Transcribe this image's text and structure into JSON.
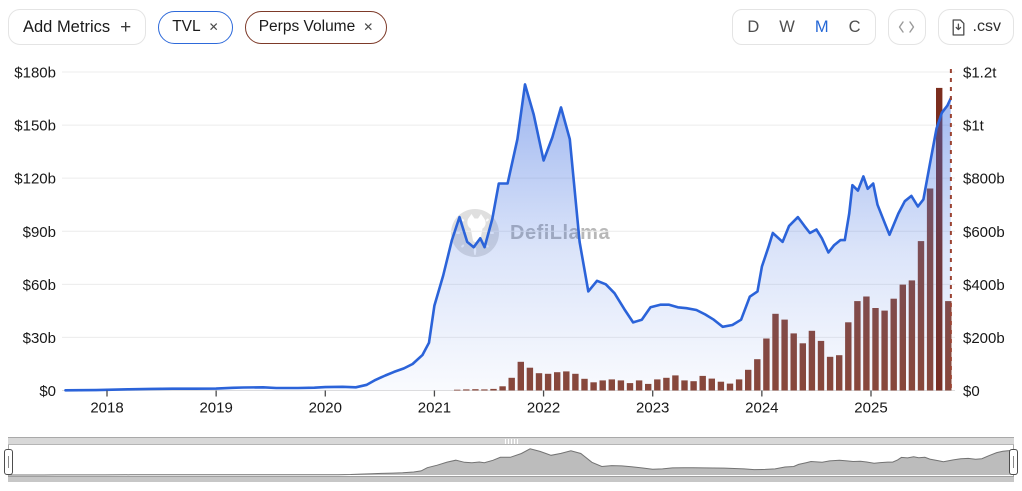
{
  "header": {
    "add_metrics": {
      "label": "Add Metrics",
      "plus_icon": "+"
    },
    "selected_metrics": [
      {
        "label": "TVL",
        "remove_icon": "✕",
        "accent": "#2e6ada"
      },
      {
        "label": "Perps Volume",
        "remove_icon": "✕",
        "accent": "#7d3a29"
      }
    ],
    "intervals": {
      "options": [
        "D",
        "W",
        "M",
        "C"
      ],
      "selected": "M",
      "selected_color": "#2467d6"
    },
    "embed_icon": "code-brackets-icon",
    "csv_button": {
      "label": ".csv",
      "icon": "file-download-icon"
    }
  },
  "watermark": {
    "text": "DefiLlama",
    "icon": "llama-logo-icon"
  },
  "colors": {
    "tvl_line": "#2b63d9",
    "tvl_fill": "#3b6ce0",
    "bars": "#8a4636",
    "bars_highlight": "#7b2d1d",
    "end_marker": "#9a4332",
    "grid": "#ececec"
  },
  "chart_data": {
    "type": "mixed",
    "title": "",
    "x_axis": {
      "ticks": [
        "2018",
        "2019",
        "2020",
        "2021",
        "2022",
        "2023",
        "2024",
        "2025"
      ]
    },
    "left_axis": {
      "title": "TVL (USD)",
      "labels": [
        "$0",
        "$30b",
        "$60b",
        "$90b",
        "$120b",
        "$150b",
        "$180b"
      ],
      "values": [
        0,
        30,
        60,
        90,
        120,
        150,
        180
      ],
      "max": 180
    },
    "right_axis": {
      "title": "Perps Volume (USD)",
      "labels": [
        "$0",
        "$200b",
        "$400b",
        "$600b",
        "$800b",
        "$1t",
        "$1.2t"
      ],
      "values": [
        0,
        200,
        400,
        600,
        800,
        1000,
        1200
      ],
      "max": 1200
    },
    "end_marker": {
      "year": 2025.732,
      "color": "#9a4332"
    },
    "series": [
      {
        "name": "TVL",
        "type": "area-line",
        "axis": "left",
        "color": "#2b63d9",
        "points": [
          [
            2017.62,
            0.1
          ],
          [
            2017.75,
            0.15
          ],
          [
            2017.9,
            0.25
          ],
          [
            2018.0,
            0.4
          ],
          [
            2018.2,
            0.7
          ],
          [
            2018.4,
            0.9
          ],
          [
            2018.6,
            1.0
          ],
          [
            2018.8,
            1.0
          ],
          [
            2019.0,
            1.1
          ],
          [
            2019.15,
            1.5
          ],
          [
            2019.25,
            1.7
          ],
          [
            2019.43,
            1.8
          ],
          [
            2019.55,
            1.4
          ],
          [
            2019.75,
            1.4
          ],
          [
            2019.9,
            1.6
          ],
          [
            2020.0,
            1.9
          ],
          [
            2020.16,
            2.1
          ],
          [
            2020.28,
            1.8
          ],
          [
            2020.38,
            3.2
          ],
          [
            2020.46,
            6
          ],
          [
            2020.55,
            8.5
          ],
          [
            2020.63,
            10.5
          ],
          [
            2020.72,
            12.5
          ],
          [
            2020.8,
            15
          ],
          [
            2020.89,
            20
          ],
          [
            2020.95,
            27
          ],
          [
            2021.0,
            48
          ],
          [
            2021.08,
            65
          ],
          [
            2021.16,
            85
          ],
          [
            2021.23,
            98
          ],
          [
            2021.3,
            84
          ],
          [
            2021.36,
            81
          ],
          [
            2021.42,
            86
          ],
          [
            2021.46,
            81
          ],
          [
            2021.53,
            97
          ],
          [
            2021.59,
            117
          ],
          [
            2021.67,
            117
          ],
          [
            2021.76,
            142
          ],
          [
            2021.83,
            173
          ],
          [
            2021.91,
            156
          ],
          [
            2022.0,
            130
          ],
          [
            2022.08,
            143
          ],
          [
            2022.16,
            160
          ],
          [
            2022.24,
            142
          ],
          [
            2022.33,
            84
          ],
          [
            2022.41,
            56
          ],
          [
            2022.49,
            62
          ],
          [
            2022.57,
            60
          ],
          [
            2022.65,
            55
          ],
          [
            2022.74,
            46
          ],
          [
            2022.82,
            38.5
          ],
          [
            2022.9,
            40
          ],
          [
            2022.98,
            47
          ],
          [
            2023.07,
            48.5
          ],
          [
            2023.15,
            48.5
          ],
          [
            2023.23,
            47
          ],
          [
            2023.31,
            46.5
          ],
          [
            2023.4,
            45.5
          ],
          [
            2023.48,
            43
          ],
          [
            2023.56,
            40
          ],
          [
            2023.64,
            36
          ],
          [
            2023.73,
            37
          ],
          [
            2023.81,
            40
          ],
          [
            2023.89,
            53
          ],
          [
            2023.96,
            56
          ],
          [
            2024.0,
            70
          ],
          [
            2024.06,
            81
          ],
          [
            2024.1,
            89
          ],
          [
            2024.19,
            84
          ],
          [
            2024.25,
            93
          ],
          [
            2024.33,
            98
          ],
          [
            2024.39,
            93
          ],
          [
            2024.44,
            89
          ],
          [
            2024.5,
            91
          ],
          [
            2024.55,
            86
          ],
          [
            2024.61,
            78
          ],
          [
            2024.66,
            82
          ],
          [
            2024.72,
            85
          ],
          [
            2024.76,
            85
          ],
          [
            2024.8,
            100
          ],
          [
            2024.83,
            116
          ],
          [
            2024.88,
            113
          ],
          [
            2024.93,
            121
          ],
          [
            2024.97,
            114
          ],
          [
            2025.02,
            117
          ],
          [
            2025.06,
            105
          ],
          [
            2025.13,
            94
          ],
          [
            2025.17,
            88
          ],
          [
            2025.25,
            100
          ],
          [
            2025.31,
            107
          ],
          [
            2025.37,
            110
          ],
          [
            2025.43,
            104
          ],
          [
            2025.48,
            108
          ],
          [
            2025.54,
            128
          ],
          [
            2025.6,
            148
          ],
          [
            2025.65,
            157
          ],
          [
            2025.7,
            161
          ],
          [
            2025.73,
            165
          ]
        ]
      },
      {
        "name": "Perps Volume",
        "type": "bar",
        "axis": "right",
        "color": "#8a4636",
        "highlight_color": "#7b2d1d",
        "highlight_indexes": [
          53
        ],
        "start_year": 2021,
        "start_month_index": 2,
        "values": [
          3,
          4,
          5,
          4,
          6,
          16,
          48,
          108,
          86,
          65,
          63,
          69,
          72,
          63,
          44,
          31,
          38,
          42,
          38,
          28,
          38,
          25,
          42,
          48,
          57,
          38,
          35,
          55,
          45,
          33,
          26,
          42,
          78,
          118,
          196,
          289,
          267,
          215,
          178,
          225,
          187,
          127,
          133,
          257,
          337,
          354,
          311,
          301,
          346,
          399,
          415,
          563,
          761,
          1140,
          337
        ]
      }
    ]
  }
}
